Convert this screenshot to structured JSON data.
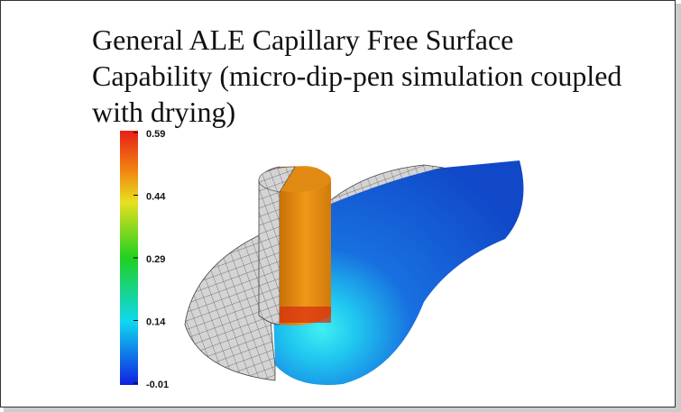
{
  "slide": {
    "title": "General ALE Capillary Free Surface Capability (micro-dip-pen simulation coupled with drying)",
    "colorbar": {
      "ticks": [
        "0.59",
        "0.44",
        "0.29",
        "0.14",
        "-0.01"
      ]
    }
  }
}
